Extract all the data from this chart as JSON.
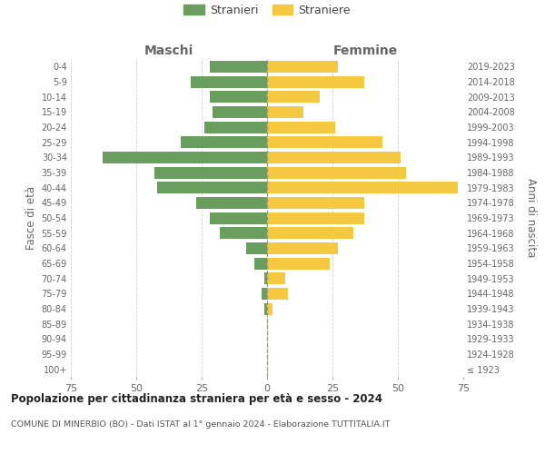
{
  "age_groups": [
    "100+",
    "95-99",
    "90-94",
    "85-89",
    "80-84",
    "75-79",
    "70-74",
    "65-69",
    "60-64",
    "55-59",
    "50-54",
    "45-49",
    "40-44",
    "35-39",
    "30-34",
    "25-29",
    "20-24",
    "15-19",
    "10-14",
    "5-9",
    "0-4"
  ],
  "birth_years": [
    "≤ 1923",
    "1924-1928",
    "1929-1933",
    "1934-1938",
    "1939-1943",
    "1944-1948",
    "1949-1953",
    "1954-1958",
    "1959-1963",
    "1964-1968",
    "1969-1973",
    "1974-1978",
    "1979-1983",
    "1984-1988",
    "1989-1993",
    "1994-1998",
    "1999-2003",
    "2004-2008",
    "2009-2013",
    "2014-2018",
    "2019-2023"
  ],
  "males": [
    0,
    0,
    0,
    0,
    1,
    2,
    1,
    5,
    8,
    18,
    22,
    27,
    42,
    43,
    63,
    33,
    24,
    21,
    22,
    29,
    22
  ],
  "females": [
    0,
    0,
    0,
    0,
    2,
    8,
    7,
    24,
    27,
    33,
    37,
    37,
    73,
    53,
    51,
    44,
    26,
    14,
    20,
    37,
    27
  ],
  "male_color": "#6a9e5f",
  "female_color": "#f5c842",
  "title": "Popolazione per cittadinanza straniera per età e sesso - 2024",
  "subtitle": "COMUNE DI MINERBIO (BO) - Dati ISTAT al 1° gennaio 2024 - Elaborazione TUTTITALIA.IT",
  "legend_male": "Stranieri",
  "legend_female": "Straniere",
  "header_left": "Maschi",
  "header_right": "Femmine",
  "ylabel_left": "Fasce di età",
  "ylabel_right": "Anni di nascita",
  "xlim": 75,
  "bg_color": "#ffffff",
  "grid_color": "#c8c8c8",
  "centerline_color": "#999977"
}
